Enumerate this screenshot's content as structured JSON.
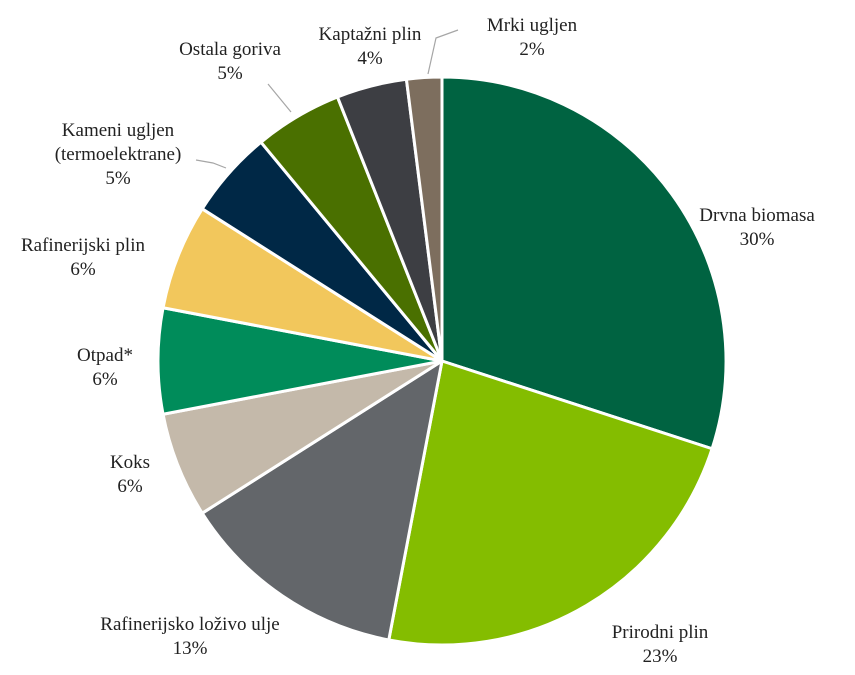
{
  "chart_data": {
    "type": "pie",
    "categories": [
      "Drvna biomasa",
      "Prirodni plin",
      "Rafinerijsko loživo ulje",
      "Koks",
      "Otpad*",
      "Rafinerijski plin",
      "Kameni ugljen (termoelektrane)",
      "Ostala goriva",
      "Kaptažni plin",
      "Mrki ugljen"
    ],
    "values": [
      30,
      23,
      13,
      6,
      6,
      6,
      5,
      5,
      4,
      2
    ],
    "value_labels": [
      "30%",
      "23%",
      "13%",
      "6%",
      "6%",
      "6%",
      "5%",
      "5%",
      "4%",
      "2%"
    ],
    "colors": [
      "#006341",
      "#84bd00",
      "#63666a",
      "#c4b9aa",
      "#008c5a",
      "#f2c75c",
      "#002846",
      "#4a7000",
      "#3d3e43",
      "#7d6e5e"
    ]
  }
}
